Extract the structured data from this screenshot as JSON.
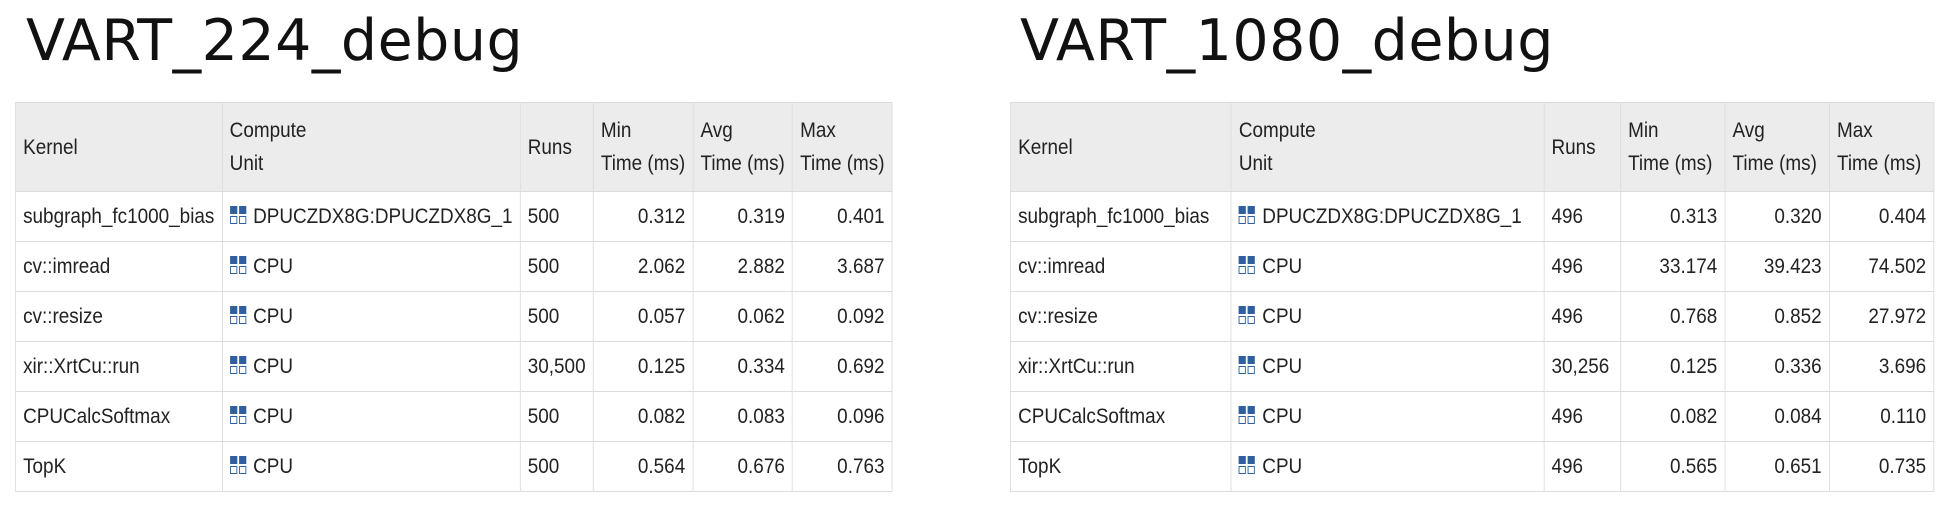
{
  "panels": [
    {
      "title": "VART_224_debug",
      "headers": {
        "kernel": "Kernel",
        "compute1": "Compute",
        "compute2": "Unit",
        "runs": "Runs",
        "min1": "Min",
        "min2": "Time (ms)",
        "avg1": "Avg",
        "avg2": "Time (ms)",
        "max1": "Max",
        "max2": "Time (ms)"
      },
      "rows": [
        {
          "kernel": "subgraph_fc1000_bias",
          "cu": "DPUCZDX8G:DPUCZDX8G_1",
          "runs": "500",
          "min": "0.312",
          "avg": "0.319",
          "max": "0.401"
        },
        {
          "kernel": "cv::imread",
          "cu": "CPU",
          "runs": "500",
          "min": "2.062",
          "avg": "2.882",
          "max": "3.687"
        },
        {
          "kernel": "cv::resize",
          "cu": "CPU",
          "runs": "500",
          "min": "0.057",
          "avg": "0.062",
          "max": "0.092"
        },
        {
          "kernel": "xir::XrtCu::run",
          "cu": "CPU",
          "runs": "30,500",
          "min": "0.125",
          "avg": "0.334",
          "max": "0.692"
        },
        {
          "kernel": "CPUCalcSoftmax",
          "cu": "CPU",
          "runs": "500",
          "min": "0.082",
          "avg": "0.083",
          "max": "0.096"
        },
        {
          "kernel": "TopK",
          "cu": "CPU",
          "runs": "500",
          "min": "0.564",
          "avg": "0.676",
          "max": "0.763"
        }
      ]
    },
    {
      "title": "VART_1080_debug",
      "headers": {
        "kernel": "Kernel",
        "compute1": "Compute",
        "compute2": "Unit",
        "runs": "Runs",
        "min1": "Min",
        "min2": "Time (ms)",
        "avg1": "Avg",
        "avg2": "Time (ms)",
        "max1": "Max",
        "max2": "Time (ms)"
      },
      "rows": [
        {
          "kernel": "subgraph_fc1000_bias",
          "cu": "DPUCZDX8G:DPUCZDX8G_1",
          "runs": "496",
          "min": "0.313",
          "avg": "0.320",
          "max": "0.404"
        },
        {
          "kernel": "cv::imread",
          "cu": "CPU",
          "runs": "496",
          "min": "33.174",
          "avg": "39.423",
          "max": "74.502"
        },
        {
          "kernel": "cv::resize",
          "cu": "CPU",
          "runs": "496",
          "min": "0.768",
          "avg": "0.852",
          "max": "27.972"
        },
        {
          "kernel": "xir::XrtCu::run",
          "cu": "CPU",
          "runs": "30,256",
          "min": "0.125",
          "avg": "0.336",
          "max": "3.696"
        },
        {
          "kernel": "CPUCalcSoftmax",
          "cu": "CPU",
          "runs": "496",
          "min": "0.082",
          "avg": "0.084",
          "max": "0.110"
        },
        {
          "kernel": "TopK",
          "cu": "CPU",
          "runs": "496",
          "min": "0.565",
          "avg": "0.651",
          "max": "0.735"
        }
      ]
    }
  ],
  "icons": {
    "compute_unit": "compute-unit-icon"
  },
  "colors": {
    "header_bg": "#ececec",
    "border": "#dcdcdc",
    "icon": "#2f5f9e"
  }
}
